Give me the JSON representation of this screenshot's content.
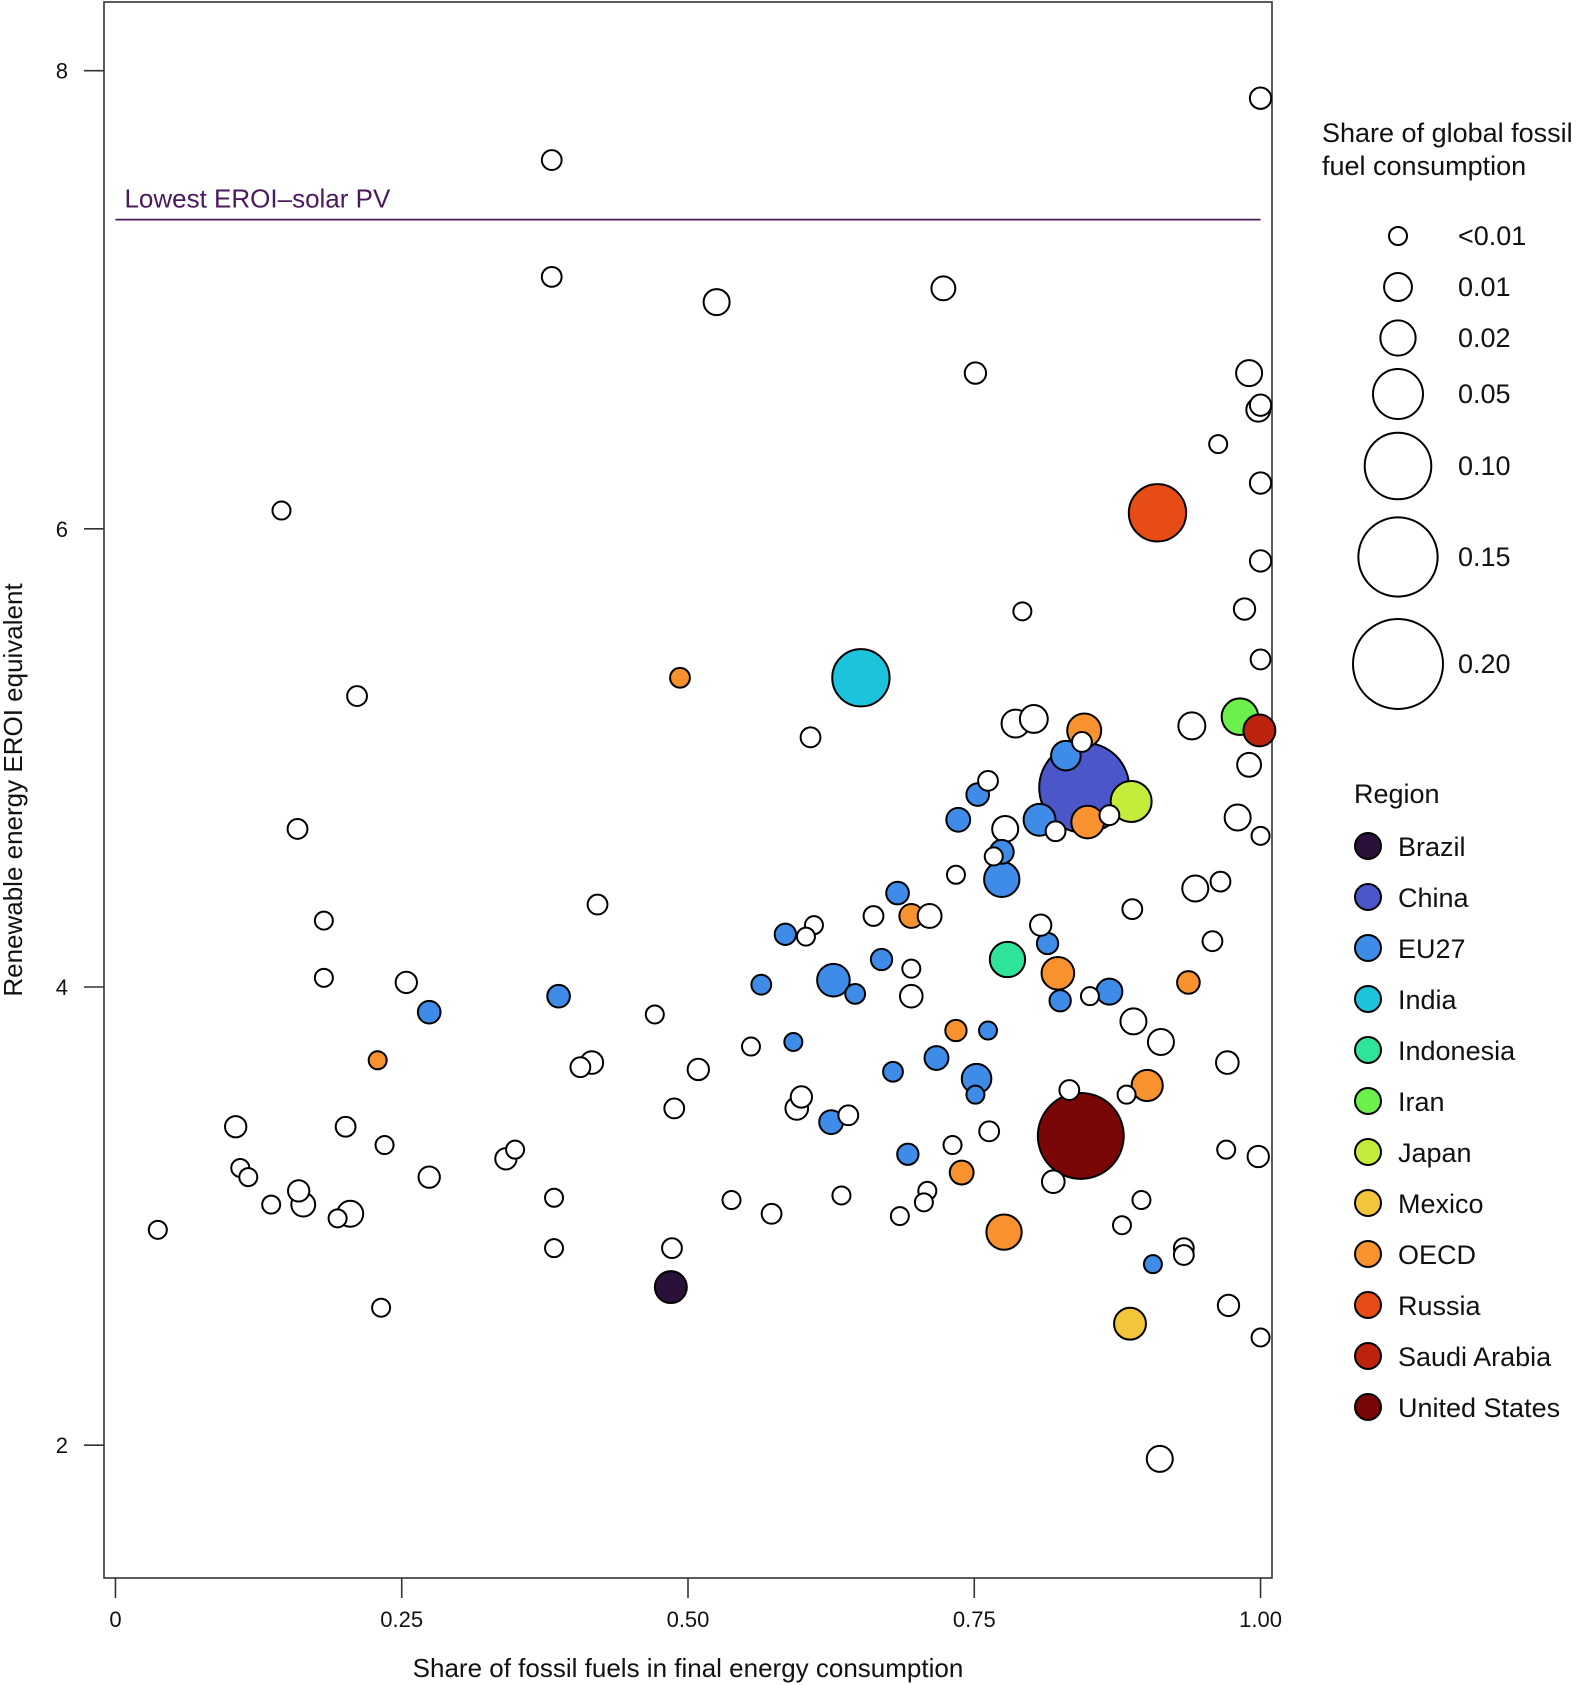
{
  "chart_data": {
    "type": "scatter",
    "xlabel": "Share of fossil fuels in final energy consumption",
    "ylabel": "Renewable energy EROI equivalent",
    "xlim": [
      -0.01,
      1.01
    ],
    "ylim": [
      1.42,
      8.3
    ],
    "x_ticks": [
      {
        "value": 0,
        "label": "0"
      },
      {
        "value": 0.25,
        "label": "0.25"
      },
      {
        "value": 0.5,
        "label": "0.50"
      },
      {
        "value": 0.75,
        "label": "0.75"
      },
      {
        "value": 1.0,
        "label": "1.00"
      }
    ],
    "y_ticks": [
      {
        "value": 2,
        "label": "2"
      },
      {
        "value": 4,
        "label": "4"
      },
      {
        "value": 6,
        "label": "6"
      },
      {
        "value": 8,
        "label": "8"
      }
    ],
    "reference_line": {
      "y": 7.35,
      "x_from": 0,
      "x_to": 1.0,
      "label": "Lowest EROI–solar PV",
      "color": "#4a1a5c"
    },
    "size_legend": {
      "title": [
        "Share of global fossil",
        "fuel consumption"
      ],
      "entries": [
        {
          "label": "<0.01",
          "value": 0.002
        },
        {
          "label": "0.01",
          "value": 0.01
        },
        {
          "label": "0.02",
          "value": 0.02
        },
        {
          "label": "0.05",
          "value": 0.05
        },
        {
          "label": "0.10",
          "value": 0.1
        },
        {
          "label": "0.15",
          "value": 0.15
        },
        {
          "label": "0.20",
          "value": 0.2
        }
      ]
    },
    "color_legend": {
      "title": "Region",
      "entries": [
        {
          "label": "Brazil",
          "color": "#2a1139"
        },
        {
          "label": "China",
          "color": "#4b57c9"
        },
        {
          "label": "EU27",
          "color": "#3f8be8"
        },
        {
          "label": "India",
          "color": "#1cc3dc"
        },
        {
          "label": "Indonesia",
          "color": "#2ee49a"
        },
        {
          "label": "Iran",
          "color": "#6cf04c"
        },
        {
          "label": "Japan",
          "color": "#c4ec3a"
        },
        {
          "label": "Mexico",
          "color": "#f2c53a"
        },
        {
          "label": "OECD",
          "color": "#f7922e"
        },
        {
          "label": "Russia",
          "color": "#e84c15"
        },
        {
          "label": "Saudi Arabia",
          "color": "#bb230c"
        },
        {
          "label": "United States",
          "color": "#7a0606"
        }
      ]
    },
    "points": [
      {
        "x": 0.846,
        "y": 4.87,
        "size": 0.2,
        "region": "China"
      },
      {
        "x": 0.843,
        "y": 3.35,
        "size": 0.18,
        "region": "United States"
      },
      {
        "x": 0.651,
        "y": 5.35,
        "size": 0.07,
        "region": "India"
      },
      {
        "x": 0.91,
        "y": 6.07,
        "size": 0.07,
        "region": "Russia"
      },
      {
        "x": 0.887,
        "y": 4.81,
        "size": 0.03,
        "region": "Japan"
      },
      {
        "x": 0.982,
        "y": 5.18,
        "size": 0.022,
        "region": "Iran"
      },
      {
        "x": 0.999,
        "y": 5.12,
        "size": 0.015,
        "region": "Saudi Arabia"
      },
      {
        "x": 0.886,
        "y": 2.53,
        "size": 0.015,
        "region": "Mexico"
      },
      {
        "x": 0.485,
        "y": 2.69,
        "size": 0.015,
        "region": "Brazil"
      },
      {
        "x": 0.779,
        "y": 4.12,
        "size": 0.02,
        "region": "Indonesia"
      },
      {
        "x": 0.776,
        "y": 2.93,
        "size": 0.02,
        "region": "OECD"
      },
      {
        "x": 0.846,
        "y": 5.12,
        "size": 0.018,
        "region": "OECD"
      },
      {
        "x": 0.849,
        "y": 4.72,
        "size": 0.016,
        "region": "OECD"
      },
      {
        "x": 0.823,
        "y": 4.06,
        "size": 0.016,
        "region": "OECD"
      },
      {
        "x": 0.901,
        "y": 3.57,
        "size": 0.014,
        "region": "OECD"
      },
      {
        "x": 0.493,
        "y": 5.35,
        "size": 0.003,
        "region": "OECD"
      },
      {
        "x": 0.695,
        "y": 4.31,
        "size": 0.006,
        "region": "OECD"
      },
      {
        "x": 0.734,
        "y": 3.81,
        "size": 0.004,
        "region": "OECD"
      },
      {
        "x": 0.739,
        "y": 3.19,
        "size": 0.006,
        "region": "OECD"
      },
      {
        "x": 0.937,
        "y": 4.02,
        "size": 0.005,
        "region": "OECD"
      },
      {
        "x": 0.229,
        "y": 3.68,
        "size": 0.002,
        "region": "OECD"
      },
      {
        "x": 0.627,
        "y": 4.03,
        "size": 0.016,
        "region": "EU27"
      },
      {
        "x": 0.774,
        "y": 4.47,
        "size": 0.02,
        "region": "EU27"
      },
      {
        "x": 0.807,
        "y": 4.73,
        "size": 0.015,
        "region": "EU27"
      },
      {
        "x": 0.83,
        "y": 5.01,
        "size": 0.012,
        "region": "EU27"
      },
      {
        "x": 0.752,
        "y": 3.6,
        "size": 0.012,
        "region": "EU27"
      },
      {
        "x": 0.868,
        "y": 3.98,
        "size": 0.008,
        "region": "EU27"
      },
      {
        "x": 0.774,
        "y": 4.59,
        "size": 0.006,
        "region": "EU27"
      },
      {
        "x": 0.736,
        "y": 4.73,
        "size": 0.006,
        "region": "EU27"
      },
      {
        "x": 0.753,
        "y": 4.84,
        "size": 0.005,
        "region": "EU27"
      },
      {
        "x": 0.683,
        "y": 4.41,
        "size": 0.005,
        "region": "EU27"
      },
      {
        "x": 0.669,
        "y": 4.12,
        "size": 0.004,
        "region": "EU27"
      },
      {
        "x": 0.585,
        "y": 4.23,
        "size": 0.004,
        "region": "EU27"
      },
      {
        "x": 0.717,
        "y": 3.69,
        "size": 0.006,
        "region": "EU27"
      },
      {
        "x": 0.625,
        "y": 3.41,
        "size": 0.006,
        "region": "EU27"
      },
      {
        "x": 0.387,
        "y": 3.96,
        "size": 0.005,
        "region": "EU27"
      },
      {
        "x": 0.274,
        "y": 3.89,
        "size": 0.005,
        "region": "EU27"
      },
      {
        "x": 0.564,
        "y": 4.01,
        "size": 0.003,
        "region": "EU27"
      },
      {
        "x": 0.646,
        "y": 3.97,
        "size": 0.003,
        "region": "EU27"
      },
      {
        "x": 0.592,
        "y": 3.76,
        "size": 0.002,
        "region": "EU27"
      },
      {
        "x": 0.679,
        "y": 3.63,
        "size": 0.003,
        "region": "EU27"
      },
      {
        "x": 0.692,
        "y": 3.27,
        "size": 0.004,
        "region": "EU27"
      },
      {
        "x": 0.762,
        "y": 3.81,
        "size": 0.002,
        "region": "EU27"
      },
      {
        "x": 0.751,
        "y": 3.53,
        "size": 0.002,
        "region": "EU27"
      },
      {
        "x": 0.825,
        "y": 3.94,
        "size": 0.004,
        "region": "EU27"
      },
      {
        "x": 0.814,
        "y": 4.19,
        "size": 0.004,
        "region": "EU27"
      },
      {
        "x": 0.906,
        "y": 2.79,
        "size": 0.002,
        "region": "EU27"
      },
      {
        "x": 1.0,
        "y": 7.88,
        "size": 0.004,
        "region": "Other"
      },
      {
        "x": 0.381,
        "y": 7.61,
        "size": 0.003,
        "region": "Other"
      },
      {
        "x": 0.381,
        "y": 7.1,
        "size": 0.003,
        "region": "Other"
      },
      {
        "x": 0.525,
        "y": 6.99,
        "size": 0.008,
        "region": "Other"
      },
      {
        "x": 0.723,
        "y": 7.05,
        "size": 0.006,
        "region": "Other"
      },
      {
        "x": 0.751,
        "y": 6.68,
        "size": 0.004,
        "region": "Other"
      },
      {
        "x": 0.99,
        "y": 6.68,
        "size": 0.008,
        "region": "Other"
      },
      {
        "x": 0.998,
        "y": 6.52,
        "size": 0.006,
        "region": "Other"
      },
      {
        "x": 1.0,
        "y": 6.54,
        "size": 0.004,
        "region": "Other"
      },
      {
        "x": 0.963,
        "y": 6.37,
        "size": 0.002,
        "region": "Other"
      },
      {
        "x": 1.0,
        "y": 6.2,
        "size": 0.004,
        "region": "Other"
      },
      {
        "x": 0.145,
        "y": 6.08,
        "size": 0.002,
        "region": "Other"
      },
      {
        "x": 1.0,
        "y": 5.86,
        "size": 0.004,
        "region": "Other"
      },
      {
        "x": 0.792,
        "y": 5.64,
        "size": 0.002,
        "region": "Other"
      },
      {
        "x": 0.986,
        "y": 5.65,
        "size": 0.004,
        "region": "Other"
      },
      {
        "x": 1.0,
        "y": 5.43,
        "size": 0.003,
        "region": "Other"
      },
      {
        "x": 0.211,
        "y": 5.27,
        "size": 0.003,
        "region": "Other"
      },
      {
        "x": 0.786,
        "y": 5.15,
        "size": 0.01,
        "region": "Other"
      },
      {
        "x": 0.802,
        "y": 5.17,
        "size": 0.01,
        "region": "Other"
      },
      {
        "x": 0.94,
        "y": 5.14,
        "size": 0.009,
        "region": "Other"
      },
      {
        "x": 0.607,
        "y": 5.09,
        "size": 0.003,
        "region": "Other"
      },
      {
        "x": 0.844,
        "y": 5.07,
        "size": 0.003,
        "region": "Other"
      },
      {
        "x": 0.99,
        "y": 4.97,
        "size": 0.006,
        "region": "Other"
      },
      {
        "x": 0.762,
        "y": 4.9,
        "size": 0.003,
        "region": "Other"
      },
      {
        "x": 0.98,
        "y": 4.74,
        "size": 0.008,
        "region": "Other"
      },
      {
        "x": 0.777,
        "y": 4.69,
        "size": 0.008,
        "region": "Other"
      },
      {
        "x": 0.159,
        "y": 4.69,
        "size": 0.003,
        "region": "Other"
      },
      {
        "x": 1.0,
        "y": 4.66,
        "size": 0.002,
        "region": "Other"
      },
      {
        "x": 0.821,
        "y": 4.68,
        "size": 0.003,
        "region": "Other"
      },
      {
        "x": 0.868,
        "y": 4.75,
        "size": 0.003,
        "region": "Other"
      },
      {
        "x": 0.767,
        "y": 4.57,
        "size": 0.002,
        "region": "Other"
      },
      {
        "x": 0.734,
        "y": 4.49,
        "size": 0.002,
        "region": "Other"
      },
      {
        "x": 0.965,
        "y": 4.46,
        "size": 0.003,
        "region": "Other"
      },
      {
        "x": 0.943,
        "y": 4.43,
        "size": 0.008,
        "region": "Other"
      },
      {
        "x": 0.421,
        "y": 4.36,
        "size": 0.003,
        "region": "Other"
      },
      {
        "x": 0.888,
        "y": 4.34,
        "size": 0.003,
        "region": "Other"
      },
      {
        "x": 0.662,
        "y": 4.31,
        "size": 0.003,
        "region": "Other"
      },
      {
        "x": 0.711,
        "y": 4.31,
        "size": 0.006,
        "region": "Other"
      },
      {
        "x": 0.182,
        "y": 4.29,
        "size": 0.002,
        "region": "Other"
      },
      {
        "x": 0.61,
        "y": 4.27,
        "size": 0.002,
        "region": "Other"
      },
      {
        "x": 0.603,
        "y": 4.22,
        "size": 0.002,
        "region": "Other"
      },
      {
        "x": 0.808,
        "y": 4.27,
        "size": 0.004,
        "region": "Other"
      },
      {
        "x": 0.958,
        "y": 4.2,
        "size": 0.003,
        "region": "Other"
      },
      {
        "x": 0.182,
        "y": 4.04,
        "size": 0.002,
        "region": "Other"
      },
      {
        "x": 0.254,
        "y": 4.02,
        "size": 0.004,
        "region": "Other"
      },
      {
        "x": 0.695,
        "y": 4.08,
        "size": 0.002,
        "region": "Other"
      },
      {
        "x": 0.695,
        "y": 3.96,
        "size": 0.005,
        "region": "Other"
      },
      {
        "x": 0.851,
        "y": 3.96,
        "size": 0.002,
        "region": "Other"
      },
      {
        "x": 0.471,
        "y": 3.88,
        "size": 0.002,
        "region": "Other"
      },
      {
        "x": 0.889,
        "y": 3.85,
        "size": 0.008,
        "region": "Other"
      },
      {
        "x": 0.913,
        "y": 3.76,
        "size": 0.008,
        "region": "Other"
      },
      {
        "x": 0.555,
        "y": 3.74,
        "size": 0.002,
        "region": "Other"
      },
      {
        "x": 0.971,
        "y": 3.67,
        "size": 0.005,
        "region": "Other"
      },
      {
        "x": 0.416,
        "y": 3.67,
        "size": 0.005,
        "region": "Other"
      },
      {
        "x": 0.406,
        "y": 3.65,
        "size": 0.003,
        "region": "Other"
      },
      {
        "x": 0.509,
        "y": 3.64,
        "size": 0.004,
        "region": "Other"
      },
      {
        "x": 0.833,
        "y": 3.55,
        "size": 0.003,
        "region": "Other"
      },
      {
        "x": 0.883,
        "y": 3.53,
        "size": 0.002,
        "region": "Other"
      },
      {
        "x": 0.599,
        "y": 3.52,
        "size": 0.004,
        "region": "Other"
      },
      {
        "x": 0.595,
        "y": 3.47,
        "size": 0.005,
        "region": "Other"
      },
      {
        "x": 0.488,
        "y": 3.47,
        "size": 0.003,
        "region": "Other"
      },
      {
        "x": 0.64,
        "y": 3.44,
        "size": 0.003,
        "region": "Other"
      },
      {
        "x": 0.105,
        "y": 3.39,
        "size": 0.004,
        "region": "Other"
      },
      {
        "x": 0.201,
        "y": 3.39,
        "size": 0.003,
        "region": "Other"
      },
      {
        "x": 0.763,
        "y": 3.37,
        "size": 0.003,
        "region": "Other"
      },
      {
        "x": 0.235,
        "y": 3.31,
        "size": 0.002,
        "region": "Other"
      },
      {
        "x": 0.731,
        "y": 3.31,
        "size": 0.002,
        "region": "Other"
      },
      {
        "x": 0.97,
        "y": 3.29,
        "size": 0.002,
        "region": "Other"
      },
      {
        "x": 0.349,
        "y": 3.29,
        "size": 0.002,
        "region": "Other"
      },
      {
        "x": 0.341,
        "y": 3.25,
        "size": 0.004,
        "region": "Other"
      },
      {
        "x": 0.998,
        "y": 3.26,
        "size": 0.004,
        "region": "Other"
      },
      {
        "x": 0.109,
        "y": 3.21,
        "size": 0.002,
        "region": "Other"
      },
      {
        "x": 0.116,
        "y": 3.17,
        "size": 0.002,
        "region": "Other"
      },
      {
        "x": 0.274,
        "y": 3.17,
        "size": 0.004,
        "region": "Other"
      },
      {
        "x": 0.819,
        "y": 3.15,
        "size": 0.005,
        "region": "Other"
      },
      {
        "x": 0.16,
        "y": 3.11,
        "size": 0.004,
        "region": "Other"
      },
      {
        "x": 0.709,
        "y": 3.11,
        "size": 0.002,
        "region": "Other"
      },
      {
        "x": 0.634,
        "y": 3.09,
        "size": 0.002,
        "region": "Other"
      },
      {
        "x": 0.383,
        "y": 3.08,
        "size": 0.002,
        "region": "Other"
      },
      {
        "x": 0.538,
        "y": 3.07,
        "size": 0.002,
        "region": "Other"
      },
      {
        "x": 0.706,
        "y": 3.06,
        "size": 0.002,
        "region": "Other"
      },
      {
        "x": 0.896,
        "y": 3.07,
        "size": 0.002,
        "region": "Other"
      },
      {
        "x": 0.136,
        "y": 3.05,
        "size": 0.002,
        "region": "Other"
      },
      {
        "x": 0.164,
        "y": 3.05,
        "size": 0.006,
        "region": "Other"
      },
      {
        "x": 0.205,
        "y": 3.01,
        "size": 0.008,
        "region": "Other"
      },
      {
        "x": 0.573,
        "y": 3.01,
        "size": 0.003,
        "region": "Other"
      },
      {
        "x": 0.685,
        "y": 3.0,
        "size": 0.002,
        "region": "Other"
      },
      {
        "x": 0.194,
        "y": 2.99,
        "size": 0.002,
        "region": "Other"
      },
      {
        "x": 0.879,
        "y": 2.96,
        "size": 0.002,
        "region": "Other"
      },
      {
        "x": 0.037,
        "y": 2.94,
        "size": 0.002,
        "region": "Other"
      },
      {
        "x": 0.486,
        "y": 2.86,
        "size": 0.003,
        "region": "Other"
      },
      {
        "x": 0.383,
        "y": 2.86,
        "size": 0.002,
        "region": "Other"
      },
      {
        "x": 0.933,
        "y": 2.86,
        "size": 0.003,
        "region": "Other"
      },
      {
        "x": 0.933,
        "y": 2.83,
        "size": 0.003,
        "region": "Other"
      },
      {
        "x": 0.972,
        "y": 2.61,
        "size": 0.004,
        "region": "Other"
      },
      {
        "x": 0.232,
        "y": 2.6,
        "size": 0.002,
        "region": "Other"
      },
      {
        "x": 1.0,
        "y": 2.47,
        "size": 0.002,
        "region": "Other"
      },
      {
        "x": 0.912,
        "y": 1.94,
        "size": 0.008,
        "region": "Other"
      }
    ]
  }
}
